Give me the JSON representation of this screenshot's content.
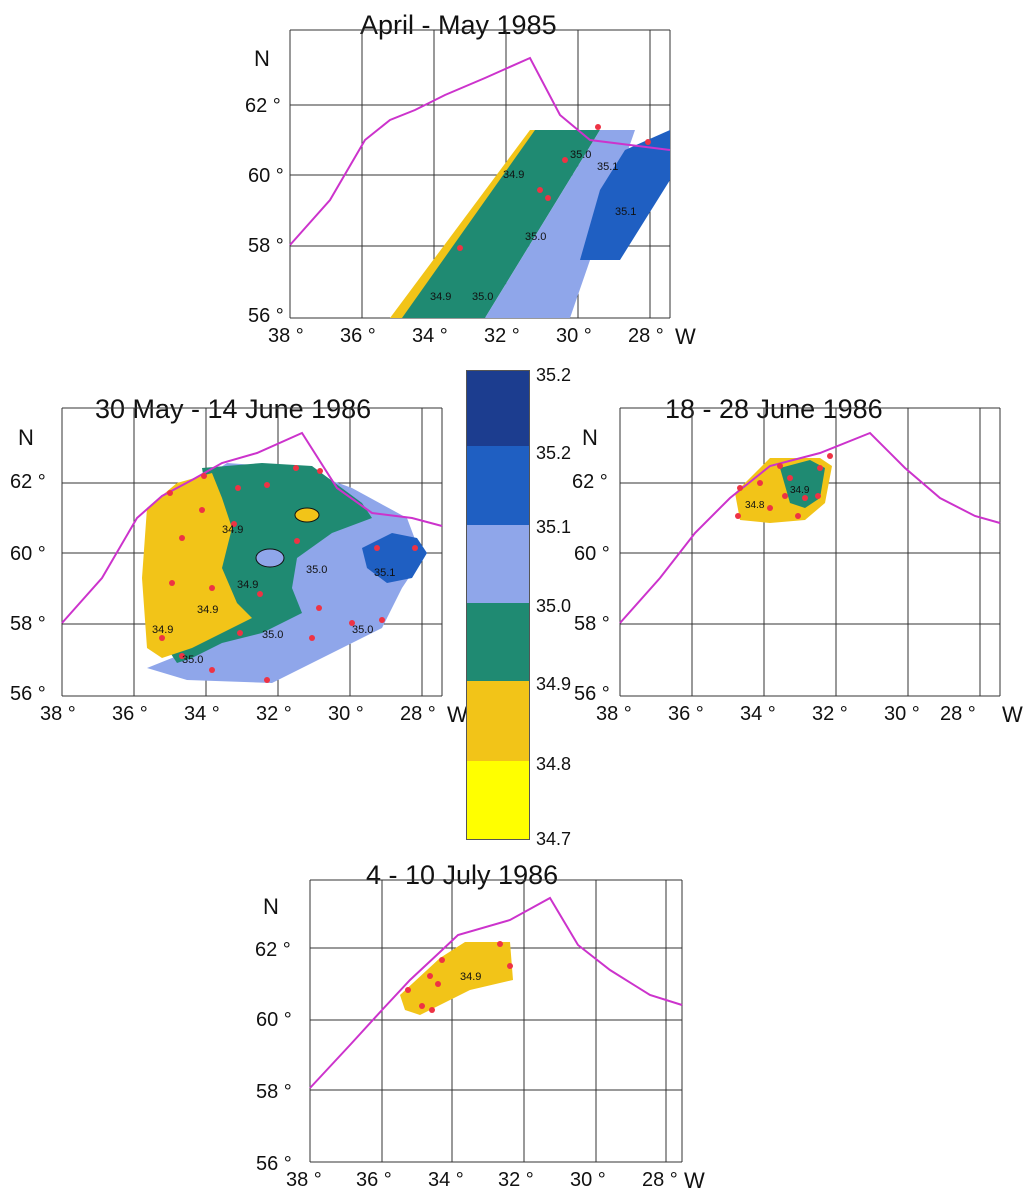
{
  "maps": [
    {
      "id": "apr-may-1985",
      "title": "April - May 1985",
      "lat_labels": [
        "62 °",
        "60 °",
        "58 °",
        "56 °"
      ],
      "lon_labels": [
        "38 °",
        "36 °",
        "34 °",
        "32 °",
        "30 °",
        "28 °"
      ],
      "n_label": "N",
      "w_label": "W",
      "contour_labels": [
        "34.9",
        "35.0",
        "35.1",
        "35.0",
        "35.0",
        "34.9",
        "35.1"
      ]
    },
    {
      "id": "may-jun-1986",
      "title": "30 May - 14 June 1986",
      "lat_labels": [
        "62 °",
        "60 °",
        "58 °",
        "56 °"
      ],
      "lon_labels": [
        "38 °",
        "36 °",
        "34 °",
        "32 °",
        "30 °",
        "28 °"
      ],
      "n_label": "N",
      "w_label": "W",
      "contour_labels": [
        "34.9",
        "34.9",
        "34.9",
        "35.0",
        "35.0",
        "35.0",
        "35.0",
        "35.1",
        "34.9"
      ]
    },
    {
      "id": "jun-1986",
      "title": "18 - 28 June 1986",
      "lat_labels": [
        "62 °",
        "60 °",
        "58 °",
        "56 °"
      ],
      "lon_labels": [
        "38 °",
        "36 °",
        "34 °",
        "32 °",
        "30 °",
        "28 °"
      ],
      "n_label": "N",
      "w_label": "W",
      "contour_labels": [
        "34.8",
        "34.9"
      ]
    },
    {
      "id": "jul-1986",
      "title": "4 - 10 July 1986",
      "lat_labels": [
        "62 °",
        "60 °",
        "58 °",
        "56 °"
      ],
      "lon_labels": [
        "38 °",
        "36 °",
        "34 °",
        "32 °",
        "30 °",
        "28 °"
      ],
      "n_label": "N",
      "w_label": "W",
      "contour_labels": [
        "34.9"
      ]
    }
  ],
  "colorbar": {
    "ticks": [
      "35.2",
      "35.2",
      "35.1",
      "35.0",
      "34.9",
      "34.8",
      "34.7"
    ],
    "bands": [
      {
        "range": "35.2–35.2",
        "color": "#1c3d8f"
      },
      {
        "range": "35.1–35.2",
        "color": "#1f5fc2"
      },
      {
        "range": "35.0–35.1",
        "color": "#8fa6ea"
      },
      {
        "range": "34.9–35.0",
        "color": "#1f8a72"
      },
      {
        "range": "34.8–34.9",
        "color": "#f2c418"
      },
      {
        "range": "34.7–34.8",
        "color": "#ffff00"
      }
    ]
  },
  "colors": {
    "ridge_line": "#cc33cc",
    "stations": "#ee3344",
    "grid": "#333333"
  }
}
